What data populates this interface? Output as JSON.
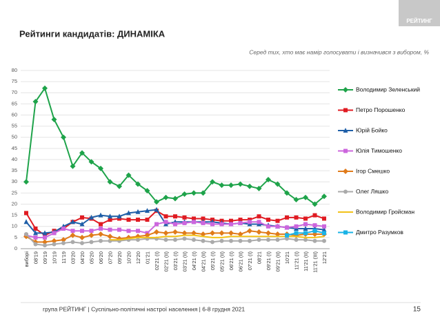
{
  "logo": "РЕЙТИНГ",
  "footer": "група РЕЙТИНГ | Суспільно-політичні настрої населення  | 6-8 грудня 2021",
  "page_number": "15",
  "chart_data": {
    "type": "line",
    "title": "Рейтинги кандидатів: ДИНАМІКА",
    "subtitle": "Серед тих, хто має намір голосувати і визначився з вибором, %",
    "categories": [
      "виборі",
      "08'19",
      "09'19",
      "10'19",
      "11'19",
      "03'20",
      "04'20",
      "05'20",
      "06'20",
      "07'20",
      "09'20",
      "10'20",
      "12'20",
      "01'21",
      "02'21 (I)",
      "02'21 (II)",
      "03'21 (I)",
      "03'21 (II)",
      "04'21 (I)",
      "04'21 (II)",
      "05'21 (I)",
      "05'21 (II)",
      "06'21 (I)",
      "06'21 (II)",
      "07'21 (I)",
      "08'21",
      "09'21 (I)",
      "09'21 (II)",
      "10'21",
      "11'21 (I)",
      "11'21 (II)",
      "11'21 (III)",
      "12'21"
    ],
    "ylim": [
      0,
      80
    ],
    "yticks": [
      0,
      5,
      10,
      15,
      20,
      25,
      30,
      35,
      40,
      45,
      50,
      55,
      60,
      65,
      70,
      75,
      80
    ],
    "grid": true,
    "series": [
      {
        "name": "Володимир Зеленський",
        "color": "#1ea34a",
        "marker": "diamond",
        "values": [
          30,
          66,
          72,
          58,
          50,
          37,
          43,
          39,
          36,
          30,
          28,
          33,
          29,
          26,
          21,
          23,
          22.5,
          24.5,
          25,
          25,
          30,
          28.5,
          28.5,
          29,
          28,
          27,
          31,
          29,
          25,
          22,
          23,
          20,
          23.5
        ]
      },
      {
        "name": "Петро Порошенко",
        "color": "#e01b22",
        "marker": "square",
        "values": [
          16,
          9,
          6,
          8,
          9,
          12,
          14,
          13.5,
          11,
          13,
          13.5,
          13,
          13,
          13,
          17,
          14.5,
          14.5,
          14,
          13.5,
          13.5,
          13,
          12.5,
          12.5,
          13,
          13,
          14.5,
          13,
          12.5,
          14,
          14,
          13.5,
          15,
          13.5
        ]
      },
      {
        "name": "Юрій Бойко",
        "color": "#1f5fa8",
        "marker": "triangle",
        "values": [
          12,
          7,
          7,
          7.5,
          10,
          12,
          11,
          14,
          15,
          14.5,
          14.5,
          16,
          16.5,
          17,
          17.5,
          11,
          12,
          12,
          12,
          12,
          12,
          11.5,
          11,
          11.5,
          11,
          11,
          10.5,
          10,
          9.5,
          9,
          9,
          9,
          8.5
        ]
      },
      {
        "name": "Юлія Тимошенко",
        "color": "#cc66dd",
        "marker": "square",
        "values": [
          6,
          5,
          5,
          7,
          9,
          8,
          8,
          8,
          9,
          8.5,
          8.5,
          8,
          8,
          7,
          11,
          12,
          11,
          11.5,
          12,
          11.5,
          11,
          11,
          11,
          11.5,
          12,
          12,
          10,
          10,
          9.5,
          10,
          11,
          10.5,
          10
        ]
      },
      {
        "name": "Ігор Смешко",
        "color": "#e07b1a",
        "marker": "diamond",
        "values": [
          5.5,
          3,
          3,
          3.5,
          4,
          6,
          5,
          6,
          6.5,
          5.5,
          4.5,
          5,
          5.5,
          6,
          7.5,
          7,
          7.5,
          7,
          7,
          6.5,
          7,
          7,
          7,
          6.5,
          8,
          7.5,
          7,
          6.5,
          6.5,
          6,
          6.5,
          6.5,
          6.5
        ]
      },
      {
        "name": "Олег Ляшко",
        "color": "#aaaaaa",
        "marker": "circle",
        "values": [
          6.5,
          2,
          1.5,
          2,
          2.5,
          3,
          2.5,
          3,
          3.5,
          3.5,
          3.5,
          4,
          4,
          4.5,
          4.5,
          4,
          4,
          4.5,
          4,
          3.5,
          3,
          3.5,
          3.5,
          3.5,
          3.5,
          4,
          4,
          4,
          4.5,
          4,
          4,
          3.5,
          3.5
        ]
      },
      {
        "name": "Володимир Гройсман",
        "color": "#f2c218",
        "marker": "none",
        "values": [
          null,
          null,
          null,
          null,
          null,
          null,
          null,
          null,
          null,
          4,
          4,
          4.5,
          5,
          5,
          5,
          5.5,
          5.5,
          6,
          6,
          5.5,
          5,
          5,
          5.5,
          5.5,
          5.5,
          5.5,
          5.5,
          5.5,
          5.5,
          5.5,
          5,
          5,
          5.5
        ]
      },
      {
        "name": "Дмитро Разумков",
        "color": "#19b3e6",
        "marker": "square",
        "values": [
          null,
          null,
          null,
          null,
          null,
          null,
          null,
          null,
          null,
          null,
          null,
          null,
          null,
          null,
          null,
          null,
          null,
          null,
          null,
          null,
          null,
          null,
          null,
          null,
          null,
          null,
          null,
          null,
          6,
          7,
          7,
          8,
          7
        ]
      }
    ]
  }
}
